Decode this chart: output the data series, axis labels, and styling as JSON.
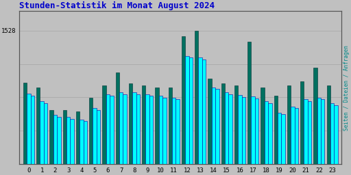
{
  "title": "Stunden-Statistik im Monat August 2024",
  "title_color": "#0000cc",
  "title_fontsize": 9,
  "background_color": "#c0c0c0",
  "plot_bg_color": "#c0c0c0",
  "ylabel_right": "Seiten / Dateien / Anfragen",
  "ylabel_right_color": "#008888",
  "ytick_label": "1528",
  "hours": [
    0,
    1,
    2,
    3,
    4,
    5,
    6,
    7,
    8,
    9,
    10,
    11,
    12,
    13,
    14,
    15,
    16,
    17,
    18,
    19,
    20,
    21,
    22,
    23
  ],
  "cyan1_bars": [
    810,
    720,
    560,
    540,
    510,
    640,
    800,
    820,
    820,
    800,
    780,
    760,
    1240,
    1220,
    880,
    820,
    790,
    775,
    720,
    590,
    660,
    740,
    760,
    695
  ],
  "cyan2_bars": [
    780,
    700,
    540,
    520,
    490,
    620,
    780,
    800,
    800,
    780,
    760,
    740,
    1220,
    1200,
    860,
    800,
    770,
    755,
    700,
    570,
    640,
    720,
    740,
    675
  ],
  "green_bars": [
    930,
    880,
    620,
    620,
    600,
    760,
    900,
    1050,
    920,
    900,
    880,
    880,
    1460,
    1528,
    980,
    920,
    900,
    1400,
    880,
    780,
    900,
    950,
    1100,
    900
  ],
  "cyan_color": "#00ffff",
  "cyan_edge": "#0000aa",
  "green_color": "#007060",
  "green_edge": "#003030",
  "bar_width": 0.28,
  "ylim_min": 0,
  "ylim_max": 1750,
  "grid_color": "#aaaaaa",
  "grid_linewidth": 0.6,
  "yticks": [
    1528
  ],
  "font_family": "monospace",
  "tick_fontsize": 6.5
}
